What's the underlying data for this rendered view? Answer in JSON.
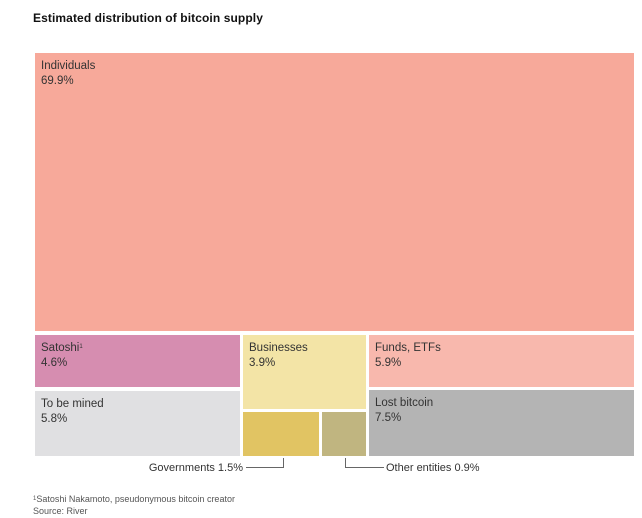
{
  "title": "Estimated distribution of bitcoin supply",
  "chart_data": {
    "type": "treemap",
    "title": "Estimated distribution of bitcoin supply",
    "unit": "%",
    "categories": [
      "Individuals",
      "Satoshi",
      "To be mined",
      "Businesses",
      "Governments",
      "Other entities",
      "Funds, ETFs",
      "Lost bitcoin"
    ],
    "values": [
      69.9,
      4.6,
      5.8,
      3.9,
      1.5,
      0.9,
      5.9,
      7.5
    ],
    "items": [
      {
        "key": "individuals",
        "label": "Individuals",
        "value_label": "69.9%",
        "value": 69.9,
        "color": "#f7a99a"
      },
      {
        "key": "satoshi",
        "label": "Satoshi",
        "footnote_marker": "1",
        "value_label": "4.6%",
        "value": 4.6,
        "color": "#d68db0"
      },
      {
        "key": "to_be_mined",
        "label": "To be mined",
        "value_label": "5.8%",
        "value": 5.8,
        "color": "#e0e0e2"
      },
      {
        "key": "businesses",
        "label": "Businesses",
        "value_label": "3.9%",
        "value": 3.9,
        "color": "#f3e4a6"
      },
      {
        "key": "governments",
        "label": "Governments 1.5%",
        "value": 1.5,
        "color": "#e1c463"
      },
      {
        "key": "other_entities",
        "label": "Other entities 0.9%",
        "value": 0.9,
        "color": "#c0b580"
      },
      {
        "key": "funds_etfs",
        "label": "Funds, ETFs",
        "value_label": "5.9%",
        "value": 5.9,
        "color": "#f8b8ad"
      },
      {
        "key": "lost_bitcoin",
        "label": "Lost bitcoin",
        "value_label": "7.5%",
        "value": 7.5,
        "color": "#b4b4b4"
      }
    ]
  },
  "footnotes": {
    "marker": "1",
    "note": "Satoshi Nakamoto, pseudonymous bitcoin creator",
    "source": "Source: River"
  }
}
